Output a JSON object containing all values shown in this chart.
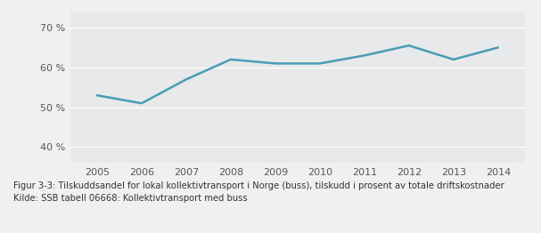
{
  "years": [
    2005,
    2006,
    2007,
    2008,
    2009,
    2010,
    2011,
    2012,
    2013,
    2014
  ],
  "values": [
    53,
    51,
    57,
    62,
    61,
    61,
    63,
    65.5,
    62,
    65
  ],
  "line_color": "#4a9cb5",
  "line_width": 1.8,
  "ylim": [
    36,
    74
  ],
  "yticks": [
    40,
    50,
    60,
    70
  ],
  "ytick_labels": [
    "40 %",
    "50 %",
    "60 %",
    "70 %"
  ],
  "xlim": [
    2004.4,
    2014.6
  ],
  "xticks": [
    2005,
    2006,
    2007,
    2008,
    2009,
    2010,
    2011,
    2012,
    2013,
    2014
  ],
  "plot_bg_color": "#e8e9ea",
  "fig_bg_color": "#f0f0f0",
  "caption_bg_color": "#f5f5f5",
  "caption_line1": "Figur 3-3: Tilskuddsandel for lokal kollektivtransport i Norge (buss), tilskudd i prosent av totale driftskostnader",
  "caption_line2": "Kilde: SSB tabell 06668: Kollektivtransport med buss",
  "caption_fontsize": 7.2,
  "tick_fontsize": 8.0,
  "grid_color": "#ffffff",
  "tick_color": "#555555",
  "caption_color": "#333333"
}
